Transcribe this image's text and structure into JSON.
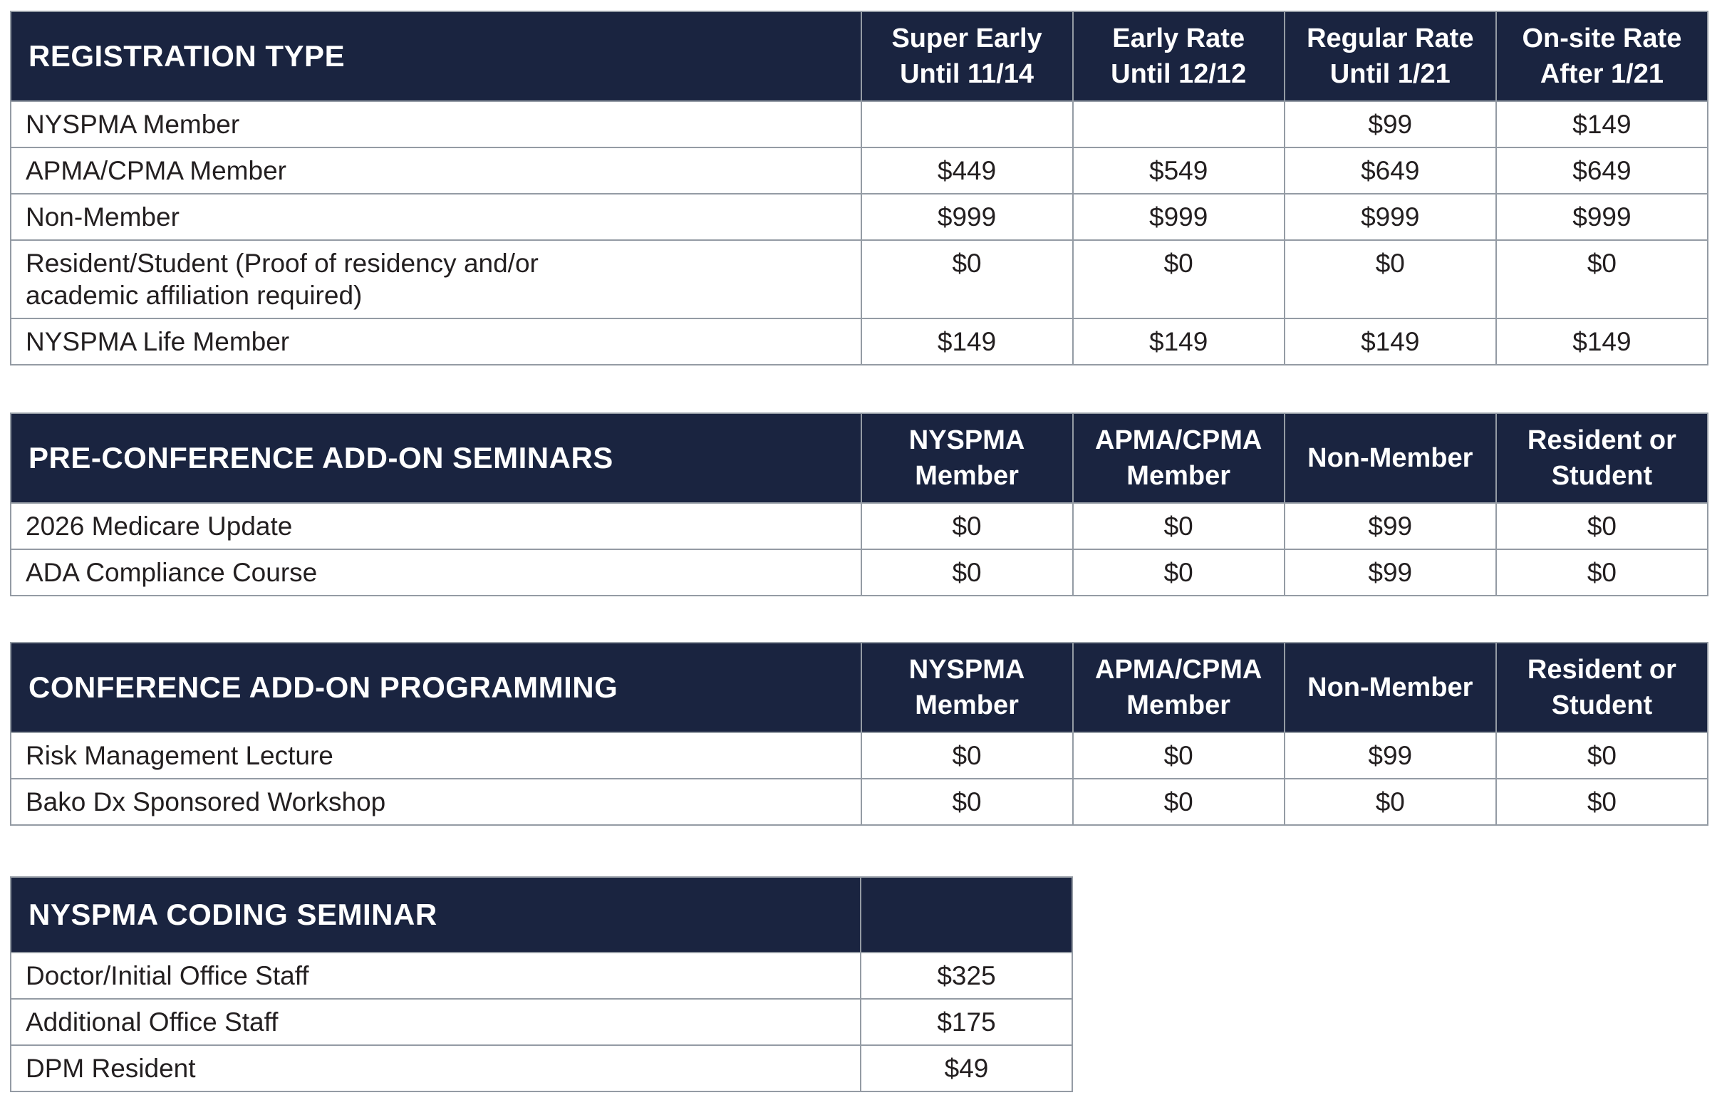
{
  "colors": {
    "header_bg": "#1a2440",
    "header_text": "#ffffff",
    "border": "#949ba4",
    "text": "#231f20",
    "page_bg": "#ffffff"
  },
  "tables": [
    {
      "title": "REGISTRATION TYPE",
      "columns": [
        {
          "lines": [
            "Super Early",
            "Until 11/14"
          ]
        },
        {
          "lines": [
            "Early Rate",
            "Until 12/12"
          ]
        },
        {
          "lines": [
            "Regular Rate",
            "Until 1/21"
          ]
        },
        {
          "lines": [
            "On-site Rate",
            "After 1/21"
          ]
        }
      ],
      "rows": [
        {
          "label_lines": [
            "NYSPMA Member"
          ],
          "values": [
            "",
            "",
            "$99",
            "$149"
          ]
        },
        {
          "label_lines": [
            "APMA/CPMA Member"
          ],
          "values": [
            "$449",
            "$549",
            "$649",
            "$649"
          ]
        },
        {
          "label_lines": [
            "Non-Member"
          ],
          "values": [
            "$999",
            "$999",
            "$999",
            "$999"
          ]
        },
        {
          "label_lines": [
            "Resident/Student (Proof of residency and/or",
            "academic affiliation required)"
          ],
          "values": [
            "$0",
            "$0",
            "$0",
            "$0"
          ]
        },
        {
          "label_lines": [
            "NYSPMA Life Member"
          ],
          "values": [
            "$149",
            "$149",
            "$149",
            "$149"
          ]
        }
      ]
    },
    {
      "title": "PRE-CONFERENCE ADD-ON SEMINARS",
      "columns": [
        {
          "lines": [
            "NYSPMA",
            "Member"
          ]
        },
        {
          "lines": [
            "APMA/CPMA",
            "Member"
          ]
        },
        {
          "lines": [
            "Non-Member"
          ]
        },
        {
          "lines": [
            "Resident or",
            "Student"
          ]
        }
      ],
      "rows": [
        {
          "label_lines": [
            "2026 Medicare Update"
          ],
          "values": [
            "$0",
            "$0",
            "$99",
            "$0"
          ]
        },
        {
          "label_lines": [
            "ADA Compliance Course"
          ],
          "values": [
            "$0",
            "$0",
            "$99",
            "$0"
          ]
        }
      ]
    },
    {
      "title": "CONFERENCE ADD-ON PROGRAMMING",
      "columns": [
        {
          "lines": [
            "NYSPMA",
            "Member"
          ]
        },
        {
          "lines": [
            "APMA/CPMA",
            "Member"
          ]
        },
        {
          "lines": [
            "Non-Member"
          ]
        },
        {
          "lines": [
            "Resident or",
            "Student"
          ]
        }
      ],
      "rows": [
        {
          "label_lines": [
            "Risk Management Lecture"
          ],
          "values": [
            "$0",
            "$0",
            "$99",
            "$0"
          ]
        },
        {
          "label_lines": [
            "Bako Dx Sponsored Workshop"
          ],
          "values": [
            "$0",
            "$0",
            "$0",
            "$0"
          ]
        }
      ]
    },
    {
      "title": "NYSPMA CODING SEMINAR",
      "columns": [
        {
          "lines": [
            ""
          ]
        }
      ],
      "rows": [
        {
          "label_lines": [
            "Doctor/Initial Office Staff"
          ],
          "values": [
            "$325"
          ]
        },
        {
          "label_lines": [
            "Additional Office Staff"
          ],
          "values": [
            "$175"
          ]
        },
        {
          "label_lines": [
            "DPM Resident"
          ],
          "values": [
            "$49"
          ]
        }
      ]
    }
  ]
}
